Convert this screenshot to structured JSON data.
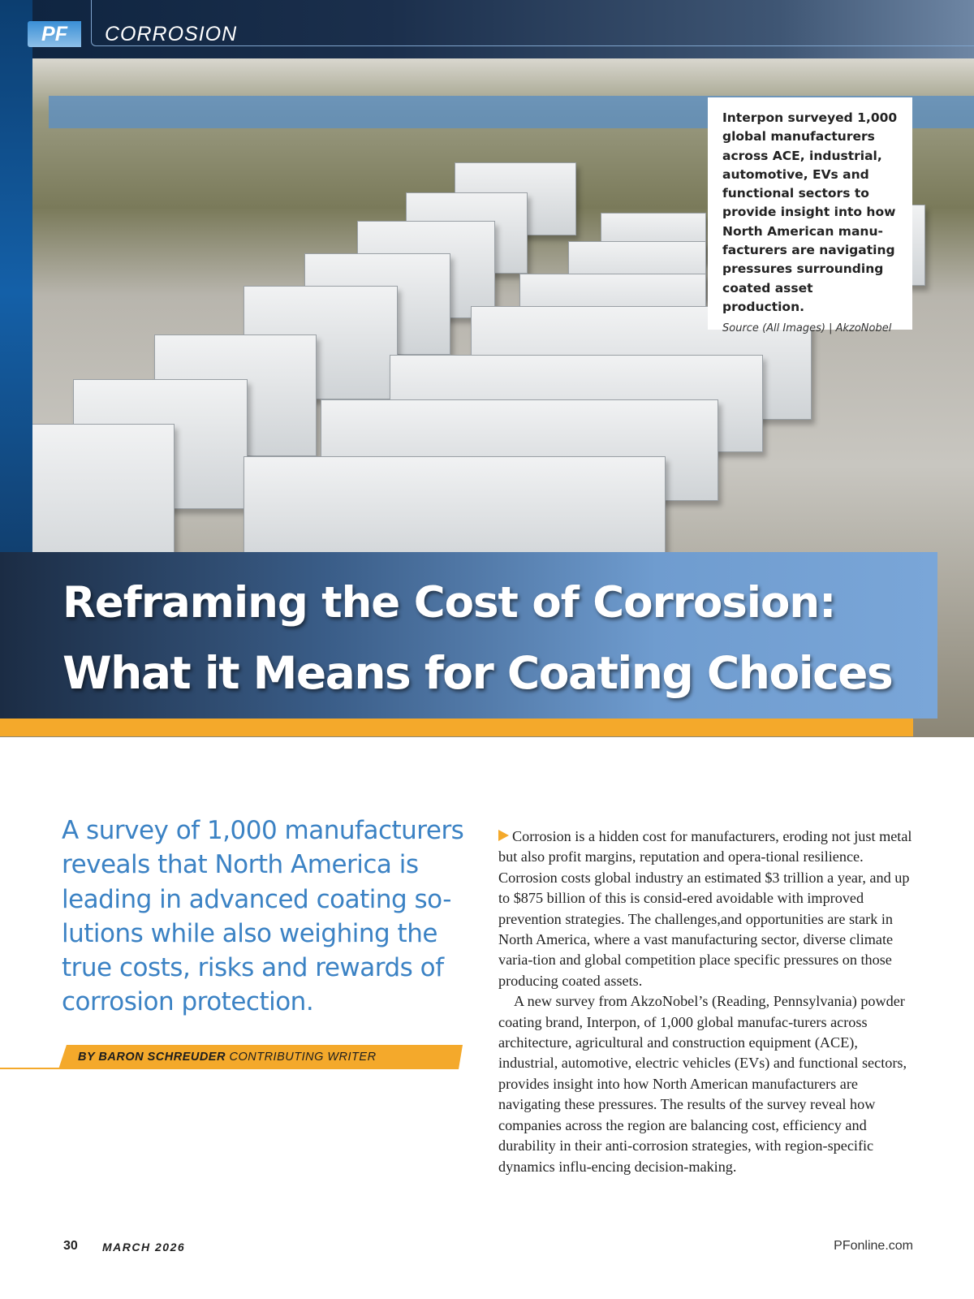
{
  "header": {
    "logo": "PF",
    "section": "CORROSION"
  },
  "photo": {
    "description_alt": "",
    "caption": "Interpon surveyed 1,000 global manufacturers across ACE, industrial, automotive, EVs and functional sectors to provide insight into how North American manu-facturers are navigating pressures surrounding coated asset production.",
    "source": "Source (All Images) | AkzoNobel"
  },
  "title": {
    "line1": "Reframing the Cost of Corrosion:",
    "line2": "What it Means for Coating Choices"
  },
  "deck": "A survey of 1,000 manufacturers reveals that North America is leading in advanced coating so-lutions while also weighing the true costs, risks and rewards of corrosion protection.",
  "byline": {
    "author": "BY BARON SCHREUDER",
    "role": "CONTRIBUTING WRITER"
  },
  "body": [
    "Corrosion is a hidden cost for manufacturers, eroding not just metal but also profit margins, reputation and opera-tional resilience. Corrosion costs global industry an estimated $3 trillion a year, and up to $875 billion of this is consid-ered avoidable with improved prevention strategies. The challenges,and opportunities are stark in North America, where a vast manufacturing sector, diverse climate varia-tion and global competition place specific pressures on those producing coated assets.",
    "A new survey from AkzoNobel’s (Reading, Pennsylvania) powder coating brand, Interpon, of 1,000 global manufac-turers across architecture, agricultural and construction equipment (ACE), industrial, automotive, electric vehicles (EVs) and functional sectors, provides insight into how North American manufacturers are navigating these pressures. The results of the survey reveal how companies across the region are balancing cost, efficiency and durability in their anti-corrosion strategies, with region-specific dynamics influ-encing decision-making."
  ],
  "footer": {
    "page": "30",
    "issue": "MARCH 2026",
    "site": "PFonline.com"
  },
  "colors": {
    "accent_orange": "#f4a92b",
    "deck_blue": "#3b82c4",
    "navy": "#1b2c44"
  }
}
